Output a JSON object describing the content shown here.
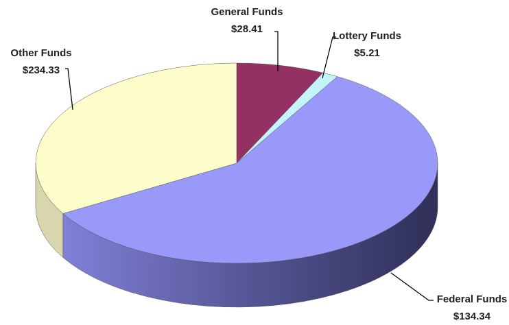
{
  "chart_data": {
    "type": "pie3d",
    "categories": [
      "General Funds",
      "Lottery Funds",
      "Other Funds",
      "Federal Funds"
    ],
    "values": [
      28.41,
      5.21,
      234.33,
      134.34
    ],
    "value_labels": [
      "$28.41",
      "$5.21",
      "$234.33",
      "$134.34"
    ],
    "colors": [
      "#953062",
      "#c4f4fa",
      "#9999fa",
      "#fdfccb"
    ]
  }
}
